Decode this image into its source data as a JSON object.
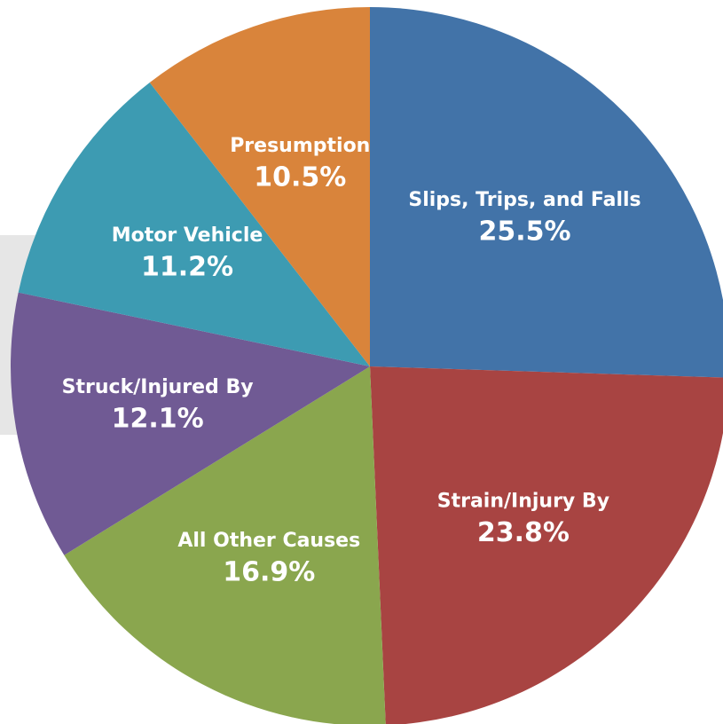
{
  "chart_data": {
    "type": "pie",
    "categories": [
      "Slips, Trips, and Falls",
      "Strain/Injury By",
      "All Other Causes",
      "Struck/Injured By",
      "Motor Vehicle",
      "Presumption"
    ],
    "values": [
      25.5,
      23.8,
      16.9,
      12.1,
      11.2,
      10.5
    ],
    "value_labels": [
      "25.5%",
      "23.8%",
      "16.9%",
      "12.1%",
      "11.2%",
      "10.5%"
    ],
    "colors": [
      "#4273a8",
      "#a84442",
      "#8aa64e",
      "#705a94",
      "#3d9bb2",
      "#d9843b"
    ]
  }
}
